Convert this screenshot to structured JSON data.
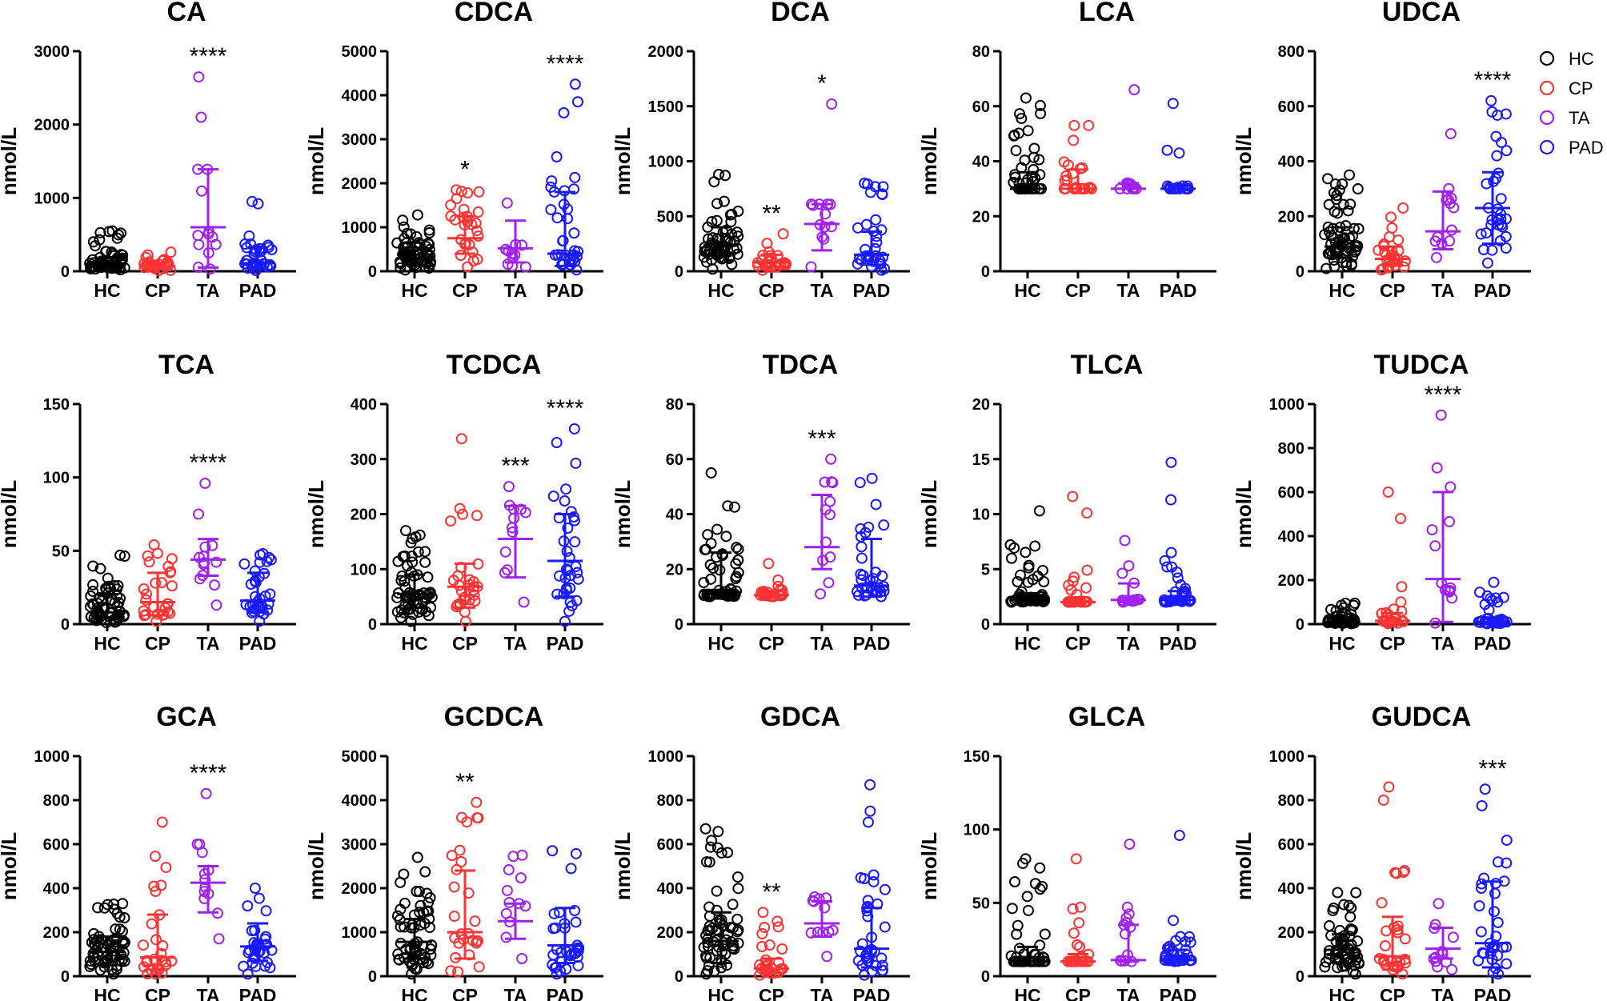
{
  "ylabel": "nmol/L",
  "categories": [
    "HC",
    "CP",
    "TA",
    "PAD"
  ],
  "colors": {
    "HC": "#000000",
    "CP": "#ff3333",
    "TA": "#a020f0",
    "PAD": "#1a1aff"
  },
  "legend": [
    {
      "label": "HC",
      "color": "#000000"
    },
    {
      "label": "CP",
      "color": "#ff3333"
    },
    {
      "label": "TA",
      "color": "#a020f0"
    },
    {
      "label": "PAD",
      "color": "#1a1aff"
    }
  ],
  "chart_data": [
    {
      "type": "scatter",
      "title": "CA",
      "ylim": [
        0,
        3000
      ],
      "yticks": [
        0,
        1000,
        2000,
        3000
      ],
      "sig": {
        "TA": "****"
      },
      "groups": [
        {
          "name": "HC",
          "n": 60,
          "median": 100,
          "q1": 60,
          "q3": 180,
          "min": 20,
          "max": 550,
          "outliers": []
        },
        {
          "name": "CP",
          "n": 25,
          "median": 70,
          "q1": 40,
          "q3": 110,
          "min": 10,
          "max": 260,
          "outliers": []
        },
        {
          "name": "TA",
          "n": 10,
          "median": 600,
          "q1": 50,
          "q3": 1390,
          "min": 30,
          "max": 1390,
          "outliers": [
            2100,
            2650
          ]
        },
        {
          "name": "PAD",
          "n": 30,
          "median": 110,
          "q1": 50,
          "q3": 320,
          "min": 10,
          "max": 480,
          "outliers": [
            920,
            950
          ]
        }
      ]
    },
    {
      "type": "scatter",
      "title": "CDCA",
      "ylim": [
        0,
        5000
      ],
      "yticks": [
        0,
        1000,
        2000,
        3000,
        4000,
        5000
      ],
      "sig": {
        "CP": "*",
        "PAD": "****"
      },
      "groups": [
        {
          "name": "HC",
          "n": 60,
          "median": 380,
          "q1": 150,
          "q3": 650,
          "min": 30,
          "max": 1280,
          "outliers": []
        },
        {
          "name": "CP",
          "n": 25,
          "median": 750,
          "q1": 400,
          "q3": 1250,
          "min": 100,
          "max": 1850,
          "outliers": []
        },
        {
          "name": "TA",
          "n": 10,
          "median": 520,
          "q1": 200,
          "q3": 1150,
          "min": 100,
          "max": 1550,
          "outliers": []
        },
        {
          "name": "PAD",
          "n": 30,
          "median": 400,
          "q1": 120,
          "q3": 1800,
          "min": 30,
          "max": 2600,
          "outliers": [
            3600,
            3850,
            4250
          ]
        }
      ]
    },
    {
      "type": "scatter",
      "title": "DCA",
      "ylim": [
        0,
        2000
      ],
      "yticks": [
        0,
        500,
        1000,
        1500,
        2000
      ],
      "sig": {
        "CP": "**",
        "TA": "*"
      },
      "groups": [
        {
          "name": "HC",
          "n": 60,
          "median": 240,
          "q1": 140,
          "q3": 400,
          "min": 20,
          "max": 880,
          "outliers": []
        },
        {
          "name": "CP",
          "n": 25,
          "median": 80,
          "q1": 40,
          "q3": 150,
          "min": 10,
          "max": 340,
          "outliers": []
        },
        {
          "name": "TA",
          "n": 10,
          "median": 430,
          "q1": 190,
          "q3": 610,
          "min": 40,
          "max": 610,
          "outliers": [
            1520
          ]
        },
        {
          "name": "PAD",
          "n": 30,
          "median": 150,
          "q1": 60,
          "q3": 360,
          "min": 10,
          "max": 800,
          "outliers": []
        }
      ]
    },
    {
      "type": "scatter",
      "title": "LCA",
      "ylim": [
        0,
        80
      ],
      "yticks": [
        0,
        20,
        40,
        60,
        80
      ],
      "sig": {},
      "groups": [
        {
          "name": "HC",
          "n": 40,
          "median": 30,
          "q1": 30,
          "q3": 36,
          "min": 30,
          "max": 63,
          "outliers": []
        },
        {
          "name": "CP",
          "n": 25,
          "median": 30,
          "q1": 30,
          "q3": 37,
          "min": 30,
          "max": 53,
          "outliers": []
        },
        {
          "name": "TA",
          "n": 8,
          "median": 30,
          "q1": 30,
          "q3": 32,
          "min": 30,
          "max": 32,
          "outliers": [
            66
          ]
        },
        {
          "name": "PAD",
          "n": 15,
          "median": 30,
          "q1": 30,
          "q3": 31,
          "min": 30,
          "max": 31,
          "outliers": [
            43,
            44,
            61
          ]
        }
      ]
    },
    {
      "type": "scatter",
      "title": "UDCA",
      "ylim": [
        0,
        800
      ],
      "yticks": [
        0,
        200,
        400,
        600,
        800
      ],
      "sig": {
        "PAD": "****"
      },
      "groups": [
        {
          "name": "HC",
          "n": 60,
          "median": 90,
          "q1": 50,
          "q3": 160,
          "min": 10,
          "max": 350,
          "outliers": []
        },
        {
          "name": "CP",
          "n": 25,
          "median": 45,
          "q1": 20,
          "q3": 90,
          "min": 5,
          "max": 230,
          "outliers": []
        },
        {
          "name": "TA",
          "n": 10,
          "median": 145,
          "q1": 80,
          "q3": 290,
          "min": 50,
          "max": 300,
          "outliers": [
            500
          ]
        },
        {
          "name": "PAD",
          "n": 30,
          "median": 230,
          "q1": 100,
          "q3": 360,
          "min": 30,
          "max": 620,
          "outliers": []
        }
      ]
    },
    {
      "type": "scatter",
      "title": "TCA",
      "ylim": [
        0,
        150
      ],
      "yticks": [
        0,
        50,
        100,
        150
      ],
      "sig": {
        "TA": "****"
      },
      "groups": [
        {
          "name": "HC",
          "n": 60,
          "median": 8,
          "q1": 4,
          "q3": 20,
          "min": 1,
          "max": 47,
          "outliers": []
        },
        {
          "name": "CP",
          "n": 25,
          "median": 15,
          "q1": 6,
          "q3": 35,
          "min": 2,
          "max": 54,
          "outliers": []
        },
        {
          "name": "TA",
          "n": 10,
          "median": 44,
          "q1": 33,
          "q3": 58,
          "min": 13,
          "max": 75,
          "outliers": [
            96
          ]
        },
        {
          "name": "PAD",
          "n": 30,
          "median": 16,
          "q1": 8,
          "q3": 35,
          "min": 2,
          "max": 48,
          "outliers": []
        }
      ]
    },
    {
      "type": "scatter",
      "title": "TCDCA",
      "ylim": [
        0,
        400
      ],
      "yticks": [
        0,
        100,
        200,
        300,
        400
      ],
      "sig": {
        "TA": "***",
        "PAD": "****"
      },
      "groups": [
        {
          "name": "HC",
          "n": 60,
          "median": 55,
          "q1": 30,
          "q3": 90,
          "min": 5,
          "max": 170,
          "outliers": []
        },
        {
          "name": "CP",
          "n": 25,
          "median": 68,
          "q1": 30,
          "q3": 110,
          "min": 5,
          "max": 210,
          "outliers": [
            337
          ]
        },
        {
          "name": "TA",
          "n": 10,
          "median": 155,
          "q1": 85,
          "q3": 215,
          "min": 40,
          "max": 250,
          "outliers": []
        },
        {
          "name": "PAD",
          "n": 30,
          "median": 115,
          "q1": 50,
          "q3": 200,
          "min": 5,
          "max": 330,
          "outliers": [
            355
          ]
        }
      ]
    },
    {
      "type": "scatter",
      "title": "TDCA",
      "ylim": [
        0,
        80
      ],
      "yticks": [
        0,
        20,
        40,
        60,
        80
      ],
      "sig": {
        "TA": "***"
      },
      "groups": [
        {
          "name": "HC",
          "n": 55,
          "median": 11,
          "q1": 10,
          "q3": 26,
          "min": 10,
          "max": 43,
          "outliers": [
            55
          ]
        },
        {
          "name": "CP",
          "n": 20,
          "median": 10.5,
          "q1": 10,
          "q3": 12,
          "min": 10,
          "max": 16,
          "outliers": [
            22
          ]
        },
        {
          "name": "TA",
          "n": 10,
          "median": 28,
          "q1": 20,
          "q3": 47,
          "min": 11,
          "max": 60,
          "outliers": []
        },
        {
          "name": "PAD",
          "n": 30,
          "median": 14,
          "q1": 10,
          "q3": 31,
          "min": 10,
          "max": 53,
          "outliers": []
        }
      ]
    },
    {
      "type": "scatter",
      "title": "TLCA",
      "ylim": [
        0,
        20
      ],
      "yticks": [
        0,
        5,
        10,
        15,
        20
      ],
      "sig": {},
      "groups": [
        {
          "name": "HC",
          "n": 55,
          "median": 2.2,
          "q1": 2,
          "q3": 2.8,
          "min": 2,
          "max": 7.2,
          "outliers": [
            10.3
          ]
        },
        {
          "name": "CP",
          "n": 20,
          "median": 2,
          "q1": 2,
          "q3": 2.1,
          "min": 2,
          "max": 4.9,
          "outliers": [
            10.1,
            11.6
          ]
        },
        {
          "name": "TA",
          "n": 10,
          "median": 2.2,
          "q1": 2,
          "q3": 3.7,
          "min": 2,
          "max": 5.3,
          "outliers": [
            7.6
          ]
        },
        {
          "name": "PAD",
          "n": 30,
          "median": 2.2,
          "q1": 2,
          "q3": 3,
          "min": 2,
          "max": 6.5,
          "outliers": [
            11.3,
            14.7
          ]
        }
      ]
    },
    {
      "type": "scatter",
      "title": "TUDCA",
      "ylim": [
        0,
        1000
      ],
      "yticks": [
        0,
        200,
        400,
        600,
        800,
        1000
      ],
      "sig": {
        "TA": "****"
      },
      "groups": [
        {
          "name": "HC",
          "n": 40,
          "median": 10,
          "q1": 5,
          "q3": 25,
          "min": 2,
          "max": 95,
          "outliers": []
        },
        {
          "name": "CP",
          "n": 20,
          "median": 15,
          "q1": 5,
          "q3": 50,
          "min": 2,
          "max": 170,
          "outliers": [
            480,
            600
          ]
        },
        {
          "name": "TA",
          "n": 10,
          "median": 205,
          "q1": 10,
          "q3": 600,
          "min": 5,
          "max": 710,
          "outliers": [
            950
          ]
        },
        {
          "name": "PAD",
          "n": 30,
          "median": 10,
          "q1": 5,
          "q3": 30,
          "min": 2,
          "max": 190,
          "outliers": []
        }
      ]
    },
    {
      "type": "scatter",
      "title": "GCA",
      "ylim": [
        0,
        1000
      ],
      "yticks": [
        0,
        200,
        400,
        600,
        800,
        1000
      ],
      "sig": {
        "TA": "****"
      },
      "groups": [
        {
          "name": "HC",
          "n": 60,
          "median": 110,
          "q1": 50,
          "q3": 180,
          "min": 10,
          "max": 330,
          "outliers": []
        },
        {
          "name": "CP",
          "n": 25,
          "median": 85,
          "q1": 30,
          "q3": 280,
          "min": 10,
          "max": 545,
          "outliers": [
            700
          ]
        },
        {
          "name": "TA",
          "n": 10,
          "median": 425,
          "q1": 290,
          "q3": 500,
          "min": 170,
          "max": 600,
          "outliers": [
            830
          ]
        },
        {
          "name": "PAD",
          "n": 30,
          "median": 135,
          "q1": 70,
          "q3": 240,
          "min": 10,
          "max": 400,
          "outliers": []
        }
      ]
    },
    {
      "type": "scatter",
      "title": "GCDCA",
      "ylim": [
        0,
        5000
      ],
      "yticks": [
        0,
        1000,
        2000,
        3000,
        4000,
        5000
      ],
      "sig": {
        "CP": "**"
      },
      "groups": [
        {
          "name": "HC",
          "n": 60,
          "median": 780,
          "q1": 400,
          "q3": 1300,
          "min": 50,
          "max": 2700,
          "outliers": []
        },
        {
          "name": "CP",
          "n": 25,
          "median": 1000,
          "q1": 400,
          "q3": 2400,
          "min": 100,
          "max": 3950,
          "outliers": []
        },
        {
          "name": "TA",
          "n": 10,
          "median": 1250,
          "q1": 850,
          "q3": 1650,
          "min": 400,
          "max": 2750,
          "outliers": []
        },
        {
          "name": "PAD",
          "n": 30,
          "median": 700,
          "q1": 300,
          "q3": 1550,
          "min": 50,
          "max": 2850,
          "outliers": []
        }
      ]
    },
    {
      "type": "scatter",
      "title": "GDCA",
      "ylim": [
        0,
        1000
      ],
      "yticks": [
        0,
        200,
        400,
        600,
        800,
        1000
      ],
      "sig": {
        "CP": "**"
      },
      "groups": [
        {
          "name": "HC",
          "n": 60,
          "median": 160,
          "q1": 60,
          "q3": 290,
          "min": 10,
          "max": 670,
          "outliers": []
        },
        {
          "name": "CP",
          "n": 25,
          "median": 35,
          "q1": 15,
          "q3": 80,
          "min": 5,
          "max": 290,
          "outliers": []
        },
        {
          "name": "TA",
          "n": 10,
          "median": 240,
          "q1": 180,
          "q3": 340,
          "min": 90,
          "max": 360,
          "outliers": []
        },
        {
          "name": "PAD",
          "n": 30,
          "median": 125,
          "q1": 40,
          "q3": 310,
          "min": 5,
          "max": 460,
          "outliers": [
            700,
            750,
            870
          ]
        }
      ]
    },
    {
      "type": "scatter",
      "title": "GLCA",
      "ylim": [
        0,
        150
      ],
      "yticks": [
        0,
        50,
        100,
        150
      ],
      "sig": {},
      "groups": [
        {
          "name": "HC",
          "n": 50,
          "median": 10,
          "q1": 10,
          "q3": 20,
          "min": 10,
          "max": 80,
          "outliers": []
        },
        {
          "name": "CP",
          "n": 20,
          "median": 10,
          "q1": 10,
          "q3": 15,
          "min": 10,
          "max": 47,
          "outliers": [
            80
          ]
        },
        {
          "name": "TA",
          "n": 10,
          "median": 11,
          "q1": 10,
          "q3": 35,
          "min": 10,
          "max": 47,
          "outliers": [
            90
          ]
        },
        {
          "name": "PAD",
          "n": 30,
          "median": 11,
          "q1": 10,
          "q3": 18,
          "min": 10,
          "max": 38,
          "outliers": [
            96
          ]
        }
      ]
    },
    {
      "type": "scatter",
      "title": "GUDCA",
      "ylim": [
        0,
        1000
      ],
      "yticks": [
        0,
        200,
        400,
        600,
        800,
        1000
      ],
      "sig": {
        "PAD": "***"
      },
      "groups": [
        {
          "name": "HC",
          "n": 60,
          "median": 120,
          "q1": 60,
          "q3": 190,
          "min": 10,
          "max": 380,
          "outliers": []
        },
        {
          "name": "CP",
          "n": 25,
          "median": 90,
          "q1": 30,
          "q3": 270,
          "min": 10,
          "max": 480,
          "outliers": [
            800,
            860
          ]
        },
        {
          "name": "TA",
          "n": 10,
          "median": 125,
          "q1": 80,
          "q3": 220,
          "min": 30,
          "max": 330,
          "outliers": []
        },
        {
          "name": "PAD",
          "n": 30,
          "median": 150,
          "q1": 40,
          "q3": 430,
          "min": 10,
          "max": 850,
          "outliers": []
        }
      ]
    }
  ]
}
